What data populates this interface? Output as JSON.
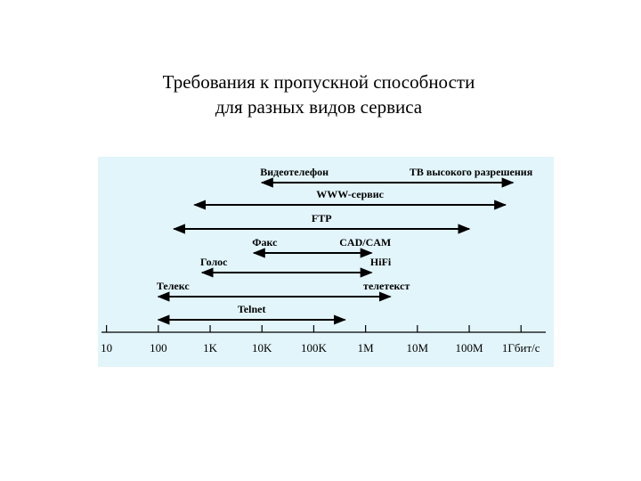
{
  "chart_data": {
    "type": "range",
    "title": [
      "Требования к пропускной способности",
      "для разных видов сервиса"
    ],
    "xscale": "log",
    "xlim": [
      8,
      3000000000
    ],
    "xticks": [
      10,
      100,
      {
        "value": 1000,
        "label": "1K"
      },
      {
        "value": 10000,
        "label": "10K"
      },
      {
        "value": 100000,
        "label": "100K"
      },
      {
        "value": 1000000,
        "label": "1M"
      },
      {
        "value": 10000000,
        "label": "10M"
      },
      {
        "value": 100000000,
        "label": "100M"
      },
      {
        "value": 1000000000,
        "label": "1Гбит/с"
      }
    ],
    "background": "#e2f5fb",
    "color": "#000000",
    "ranges": [
      {
        "labels": [
          "Видеотелефон",
          "ТВ высокого разрешения"
        ],
        "values": [
          10000,
          700000000
        ]
      },
      {
        "labels": [
          "WWW-сервис"
        ],
        "values": [
          500,
          500000000
        ]
      },
      {
        "labels": [
          "FTP"
        ],
        "values": [
          200,
          100000000
        ]
      },
      {
        "labels": [
          "Факс",
          "CAD/CAM"
        ],
        "values": [
          7000,
          1300000
        ]
      },
      {
        "labels": [
          "Голос",
          "HiFi"
        ],
        "values": [
          700,
          1300000
        ]
      },
      {
        "labels": [
          "Телекс",
          "телетекст"
        ],
        "values": [
          100,
          3000000
        ]
      },
      {
        "labels": [
          "Telnet"
        ],
        "values": [
          100,
          400000
        ]
      }
    ]
  }
}
